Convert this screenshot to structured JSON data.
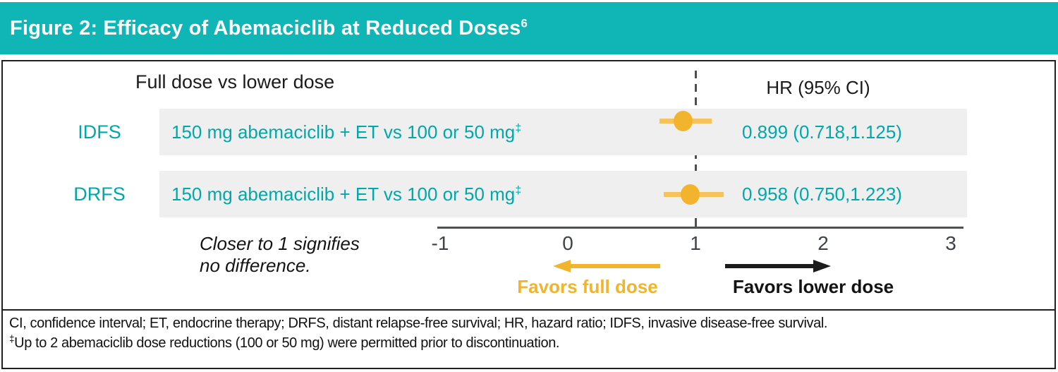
{
  "header": {
    "title": "Figure 2: Efficacy of Abemaciclib at Reduced Doses",
    "title_superscript": "6"
  },
  "chart_data": {
    "type": "scatter",
    "subtype": "forest-plot",
    "group_header": "Full dose vs lower dose",
    "value_header": "HR (95% CI)",
    "axis": {
      "min": -1,
      "max": 3,
      "ticks": [
        "-1",
        "0",
        "1",
        "2",
        "3"
      ],
      "tick_values": [
        -1,
        0,
        1,
        2,
        3
      ],
      "reference_value": 1,
      "grid": false
    },
    "rows": [
      {
        "label": "IDFS",
        "comparison": "150 mg abemaciclib + ET vs 100 or 50 mg",
        "comparison_sup": "‡",
        "hr": 0.899,
        "ci_lower": 0.718,
        "ci_upper": 1.125,
        "hr_text": "0.899 (0.718,1.125)"
      },
      {
        "label": "DRFS",
        "comparison": "150 mg abemaciclib + ET vs 100 or 50 mg",
        "comparison_sup": "‡",
        "hr": 0.958,
        "ci_lower": 0.75,
        "ci_upper": 1.223,
        "hr_text": "0.958 (0.750,1.223)"
      }
    ],
    "annotation": {
      "line1": "Closer to 1 signifies",
      "line2": "no difference."
    },
    "direction_labels": {
      "left": "Favors full dose",
      "right": "Favors lower dose"
    }
  },
  "footnotes": {
    "line1": "CI, confidence interval; ET, endocrine therapy; DRFS, distant relapse-free survival; HR, hazard ratio; IDFS, invasive disease-free survival.",
    "line2_sup": "‡",
    "line2": "Up to 2 abemaciclib dose reductions (100 or 50 mg) were permitted prior to discontinuation."
  },
  "colors": {
    "teal_header": "#10b5b6",
    "teal_text": "#00a8ab",
    "row_background": "#efefef",
    "marker_yellow": "#f2b42d",
    "ci_line_yellow": "#f6c35a"
  }
}
